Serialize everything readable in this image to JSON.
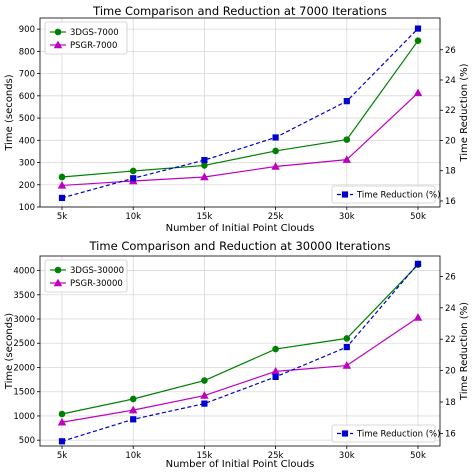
{
  "chart_data": [
    {
      "type": "line",
      "title": "Time Comparison and Reduction at 7000 Iterations",
      "xlabel": "Number of Initial Point Clouds",
      "ylabel": "Time (seconds)",
      "y2label": "Time Reduction (%)",
      "categories": [
        "5k",
        "10k",
        "15k",
        "25k",
        "30k",
        "50k"
      ],
      "ylim": [
        100,
        950
      ],
      "yticks": [
        100,
        200,
        300,
        400,
        500,
        600,
        700,
        800,
        900
      ],
      "y2lim": [
        15.6,
        28.1
      ],
      "y2ticks": [
        16,
        18,
        20,
        22,
        24,
        26
      ],
      "grid": true,
      "series": [
        {
          "name": "3DGS-7000",
          "axis": "left",
          "color": "#008000",
          "marker": "circle",
          "linestyle": "solid",
          "values": [
            235,
            262,
            287,
            352,
            403,
            848
          ]
        },
        {
          "name": "PSGR-7000",
          "axis": "left",
          "color": "#c000c0",
          "marker": "triangle",
          "linestyle": "solid",
          "values": [
            197,
            217,
            235,
            282,
            313,
            613
          ]
        }
      ],
      "series_right": [
        {
          "name": "Time Reduction (%)",
          "axis": "right",
          "color": "#0000cc",
          "marker": "square",
          "linestyle": "dashed",
          "values": [
            16.2,
            17.5,
            18.7,
            20.2,
            22.6,
            27.4
          ]
        }
      ],
      "legend_left": "top-left",
      "legend_right": "bottom-right"
    },
    {
      "type": "line",
      "title": "Time Comparison and Reduction at 30000 Iterations",
      "xlabel": "Number of Initial Point Clouds",
      "ylabel": "Time (seconds)",
      "y2label": "Time Reduction (%)",
      "categories": [
        "5k",
        "10k",
        "15k",
        "25k",
        "30k",
        "50k"
      ],
      "ylim": [
        380,
        4300
      ],
      "yticks": [
        500,
        1000,
        1500,
        2000,
        2500,
        3000,
        3500,
        4000
      ],
      "y2lim": [
        15.2,
        27.3
      ],
      "y2ticks": [
        16,
        18,
        20,
        22,
        24,
        26
      ],
      "grid": true,
      "series": [
        {
          "name": "3DGS-30000",
          "axis": "left",
          "color": "#008000",
          "marker": "circle",
          "linestyle": "solid",
          "values": [
            1040,
            1350,
            1730,
            2380,
            2600,
            4120
          ]
        },
        {
          "name": "PSGR-30000",
          "axis": "left",
          "color": "#c000c0",
          "marker": "triangle",
          "linestyle": "solid",
          "values": [
            870,
            1120,
            1420,
            1920,
            2040,
            3030
          ]
        }
      ],
      "series_right": [
        {
          "name": "Time Reduction (%)",
          "axis": "right",
          "color": "#0000cc",
          "marker": "square",
          "linestyle": "dashed",
          "values": [
            15.5,
            16.9,
            17.9,
            19.6,
            21.5,
            26.8
          ]
        }
      ],
      "legend_left": "top-left",
      "legend_right": "bottom-right"
    }
  ]
}
